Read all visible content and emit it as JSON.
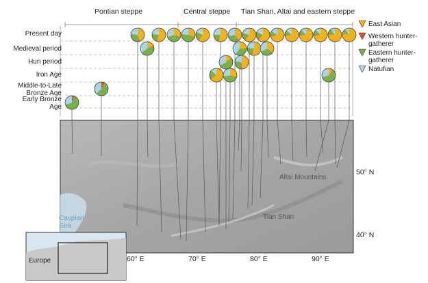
{
  "regions": [
    "Pontian steppe",
    "Central steppe",
    "Tian Shan, Altai and eastern steppe"
  ],
  "periods": [
    "Present day",
    "Medieval period",
    "Hun period",
    "Iron Age",
    "Middle-to-Late Bronze Age",
    "Early Bronze Age"
  ],
  "legend": [
    {
      "label": "East Asian",
      "color": "#f2b21c"
    },
    {
      "label": "Western hunter-gatherer",
      "color": "#e0522a"
    },
    {
      "label": "Eastern hunter-gatherer",
      "color": "#79b04a"
    },
    {
      "label": "Natufian",
      "color": "#a9d4ea"
    }
  ],
  "map": {
    "longitude_ticks": [
      "60° E",
      "70° E",
      "80° E",
      "90° E"
    ],
    "latitude_ticks": [
      "50° N",
      "40° N"
    ],
    "labels": {
      "caspian": "Caspian Sea",
      "altai": "Altai Mountains",
      "tianshan": "Tian Shan",
      "europe": "Europe"
    }
  }
}
